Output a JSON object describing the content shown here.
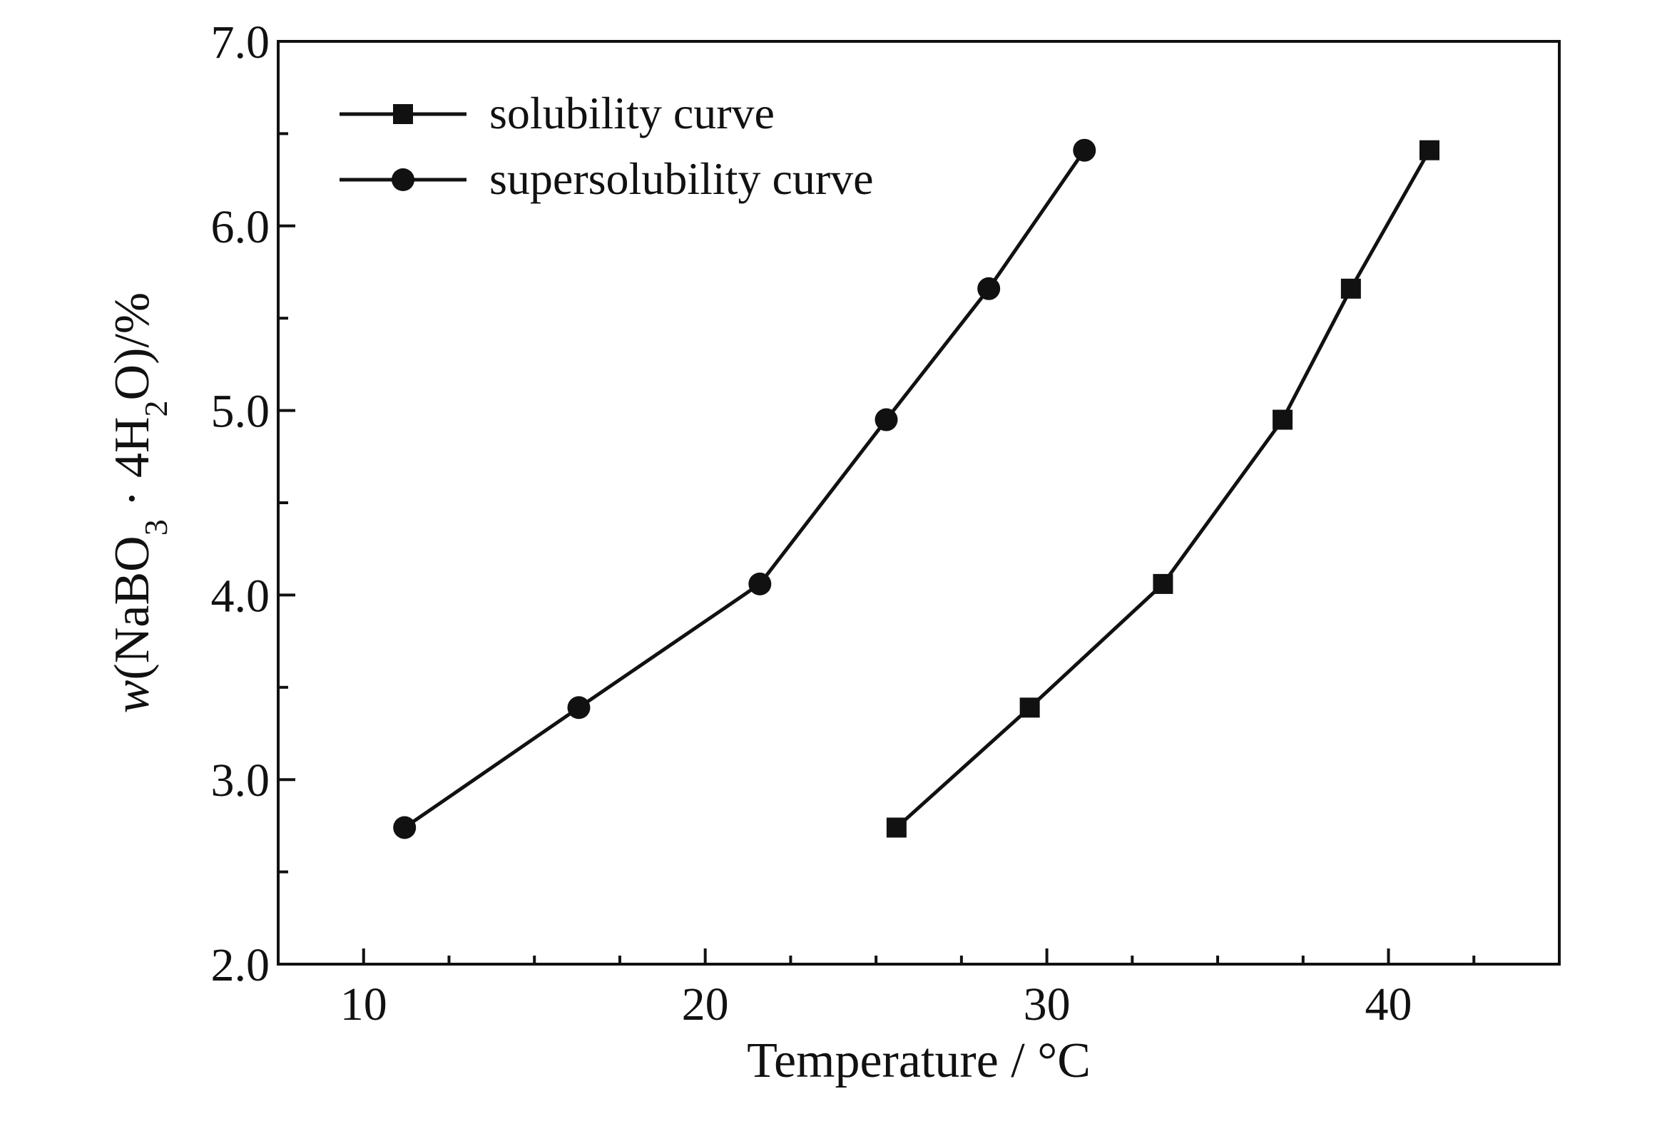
{
  "chart_data": {
    "type": "line",
    "title": "",
    "xlabel": "Temperature / °C",
    "ylabel": {
      "italic_var": "w",
      "open": "(NaBO",
      "sub1": "3",
      "mid": " · 4H",
      "sub2": "2",
      "close": "O)/%"
    },
    "xlim": [
      7.5,
      45
    ],
    "ylim": [
      2.0,
      7.0
    ],
    "x_ticks": [
      10,
      20,
      30,
      40
    ],
    "x_tick_labels": [
      "10",
      "20",
      "30",
      "40"
    ],
    "x_minor_step": 2.5,
    "y_ticks": [
      2.0,
      3.0,
      4.0,
      5.0,
      6.0,
      7.0
    ],
    "y_tick_labels": [
      "2.0",
      "3.0",
      "4.0",
      "5.0",
      "6.0",
      "7.0"
    ],
    "y_minor_step": 0.5,
    "grid": false,
    "legend_position": "top-left",
    "series": [
      {
        "name": "solubility curve",
        "marker": "square",
        "x": [
          25.6,
          29.5,
          33.4,
          36.9,
          38.9,
          41.2
        ],
        "y": [
          2.74,
          3.39,
          4.06,
          4.95,
          5.66,
          6.41
        ]
      },
      {
        "name": "supersolubility curve",
        "marker": "circle",
        "x": [
          11.2,
          16.3,
          21.6,
          25.3,
          28.3,
          31.1
        ],
        "y": [
          2.74,
          3.39,
          4.06,
          4.95,
          5.66,
          6.41
        ]
      }
    ]
  }
}
